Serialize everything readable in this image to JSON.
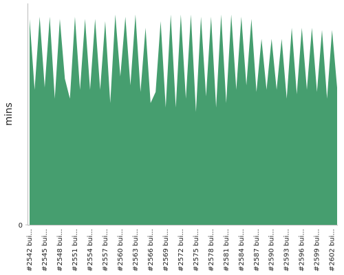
{
  "chart_data": {
    "type": "area",
    "ylabel": "mins",
    "color": "#469e6f",
    "categories": [
      "#2542 bui...",
      null,
      null,
      "#2545 bui...",
      null,
      null,
      "#2548 bui...",
      null,
      null,
      "#2551 bui...",
      null,
      null,
      "#2554 bui...",
      null,
      null,
      "#2557 bui...",
      null,
      null,
      "#2560 bui...",
      null,
      null,
      "#2563 bui...",
      null,
      null,
      "#2566 bui...",
      null,
      null,
      "#2569 bui...",
      null,
      null,
      "#2572 bui...",
      null,
      null,
      "#2575 bui...",
      null,
      null,
      "#2578 bui...",
      null,
      null,
      "#2581 bui...",
      null,
      null,
      "#2584 bui...",
      null,
      null,
      "#2587 bui...",
      null,
      null,
      "#2590 bui...",
      null,
      null,
      "#2593 bui...",
      null,
      null,
      "#2596 bui...",
      null,
      null,
      "#2599 bui...",
      null,
      null,
      "#2602 bui...",
      null
    ],
    "values": [
      9.3,
      6.1,
      9.4,
      6.2,
      9.4,
      5.7,
      9.3,
      6.6,
      5.7,
      9.4,
      6.1,
      9.3,
      6.1,
      9.3,
      6.1,
      9.2,
      5.5,
      9.5,
      6.7,
      9.4,
      6.3,
      9.5,
      6.0,
      8.9,
      5.5,
      6.0,
      9.2,
      5.3,
      9.5,
      5.3,
      9.5,
      5.7,
      9.5,
      5.1,
      9.4,
      5.8,
      9.4,
      5.3,
      9.5,
      5.5,
      9.5,
      6.1,
      9.4,
      6.3,
      9.3,
      6.0,
      8.4,
      6.1,
      8.4,
      6.1,
      8.4,
      5.7,
      8.9,
      5.9,
      8.9,
      6.1,
      8.9,
      6.0,
      8.8,
      5.7,
      8.8,
      6.2
    ],
    "ylim": [
      0,
      10
    ],
    "yticks": [
      0
    ]
  }
}
